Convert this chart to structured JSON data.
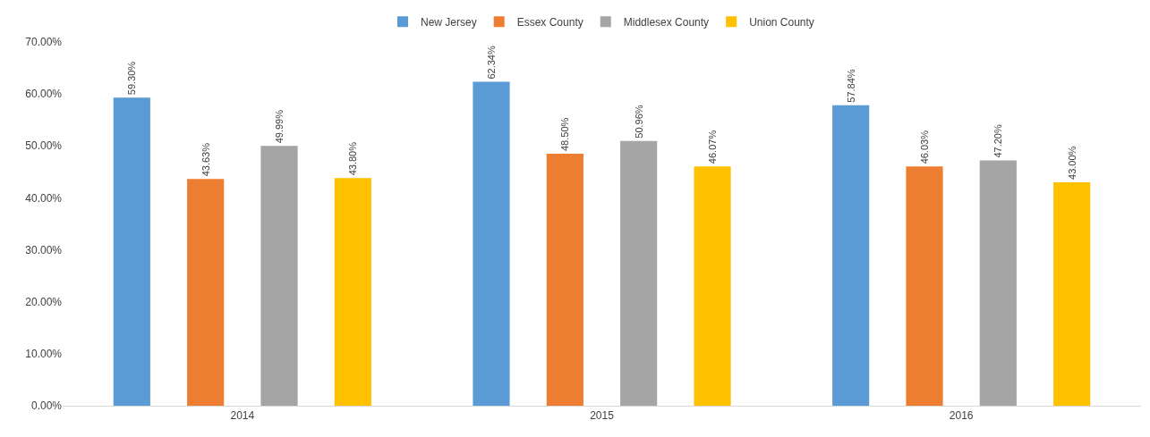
{
  "chart_data": {
    "type": "bar",
    "categories": [
      "2014",
      "2015",
      "2016"
    ],
    "series": [
      {
        "name": "New Jersey",
        "color": "#5b9bd5",
        "values": [
          59.3,
          62.34,
          57.84
        ],
        "value_labels": [
          "59.30%",
          "62.34%",
          "57.84%"
        ]
      },
      {
        "name": "Essex County",
        "color": "#ed7d31",
        "values": [
          43.63,
          48.5,
          46.03
        ],
        "value_labels": [
          "43.63%",
          "48.50%",
          "46.03%"
        ]
      },
      {
        "name": "Middlesex County",
        "color": "#a5a5a5",
        "values": [
          49.99,
          50.96,
          47.2
        ],
        "value_labels": [
          "49.99%",
          "50.96%",
          "47.20%"
        ]
      },
      {
        "name": "Union County",
        "color": "#ffc000",
        "values": [
          43.8,
          46.07,
          43.0
        ],
        "value_labels": [
          "43.80%",
          "46.07%",
          "43.00%"
        ]
      }
    ],
    "ylim": [
      0,
      70
    ],
    "yticks": [
      {
        "value": 0,
        "label": "0.00%"
      },
      {
        "value": 10,
        "label": "10.00%"
      },
      {
        "value": 20,
        "label": "20.00%"
      },
      {
        "value": 30,
        "label": "30.00%"
      },
      {
        "value": 40,
        "label": "40.00%"
      },
      {
        "value": 50,
        "label": "50.00%"
      },
      {
        "value": 60,
        "label": "60.00%"
      },
      {
        "value": 70,
        "label": "70.00%"
      }
    ],
    "legend": "top"
  }
}
